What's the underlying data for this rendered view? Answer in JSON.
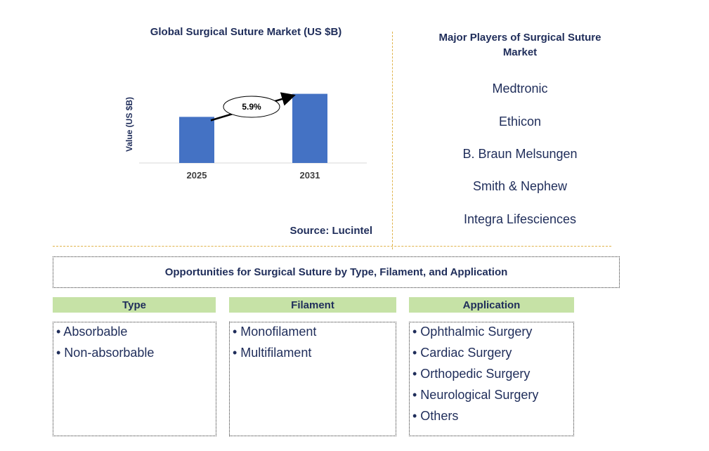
{
  "chart_data": {
    "type": "bar",
    "title": "Global Surgical Suture Market (US $B)",
    "categories": [
      "2025",
      "2031"
    ],
    "values": [
      1.0,
      1.5
    ],
    "ylabel": "Value (US $B)",
    "xlabel": "",
    "ylim": [
      0,
      1.6
    ],
    "annotation": "5.9%",
    "bar_color": "#4472c4",
    "grid": false,
    "legend": "none"
  },
  "source": "Source: Lucintel",
  "players": {
    "title": "Major Players of Surgical Suture Market",
    "items": [
      "Medtronic",
      "Ethicon",
      "B. Braun Melsungen",
      "Smith & Nephew",
      "Integra Lifesciences"
    ]
  },
  "opportunities": {
    "title": "Opportunities for Surgical Suture by Type, Filament, and Application",
    "columns": [
      {
        "header": "Type",
        "items": [
          "• Absorbable",
          "• Non-absorbable"
        ]
      },
      {
        "header": "Filament",
        "items": [
          "• Monofilament",
          "• Multifilament"
        ]
      },
      {
        "header": "Application",
        "items": [
          "• Ophthalmic Surgery",
          "• Cardiac Surgery",
          "• Orthopedic Surgery",
          "• Neurological Surgery",
          "• Others"
        ]
      }
    ]
  },
  "colors": {
    "header_green": "#c6e2a6",
    "divider": "#e0b34a",
    "text": "#1f2d5a"
  }
}
